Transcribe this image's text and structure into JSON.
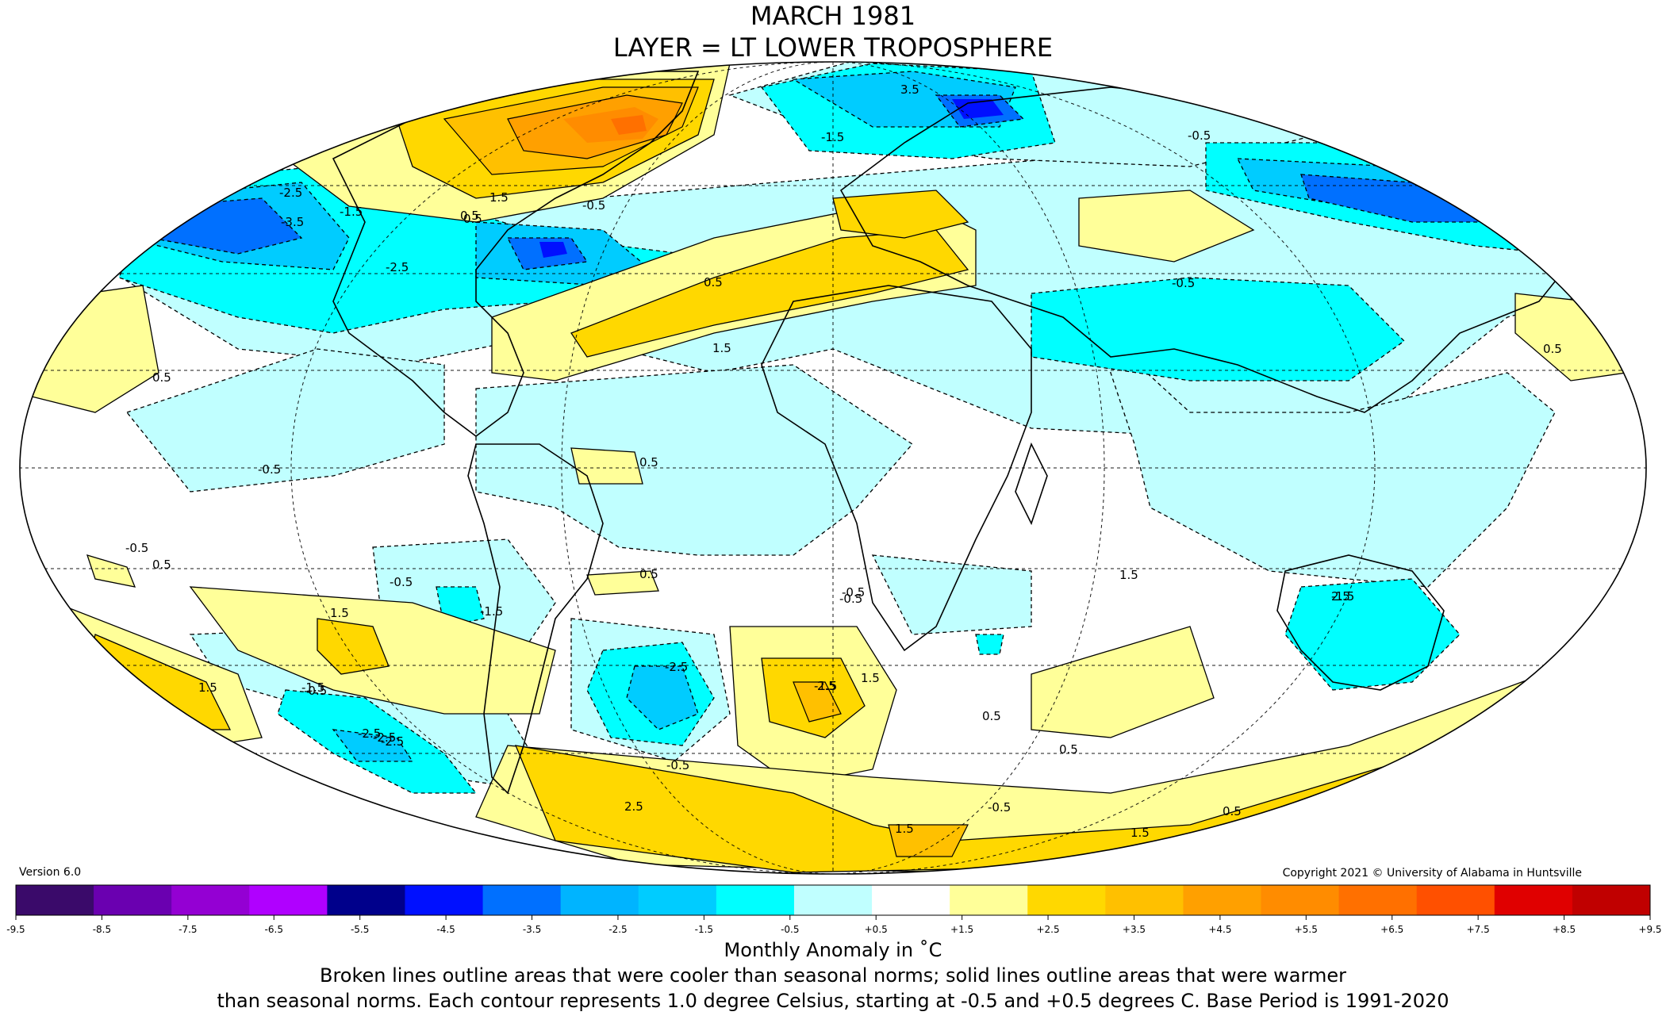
{
  "title": {
    "line1": "MARCH 1981",
    "line2": "LAYER = LT LOWER TROPOSPHERE"
  },
  "version": "Version 6.0",
  "copyright": "Copyright 2021 © University of Alabama in Huntsville",
  "colorbar": {
    "ticks": [
      "-9.5",
      "-8.5",
      "-7.5",
      "-6.5",
      "-5.5",
      "-4.5",
      "-3.5",
      "-2.5",
      "-1.5",
      "-0.5",
      "+0.5",
      "+1.5",
      "+2.5",
      "+3.5",
      "+4.5",
      "+5.5",
      "+6.5",
      "+7.5",
      "+8.5",
      "+9.5"
    ],
    "colors": [
      "#3a0a6a",
      "#6a00b0",
      "#9400d3",
      "#b000ff",
      "#00008b",
      "#0010ff",
      "#0070ff",
      "#00b4ff",
      "#00ccff",
      "#00ffff",
      "#c0ffff",
      "#ffffff",
      "#ffff99",
      "#ffd800",
      "#ffc000",
      "#ffa000",
      "#ff8c00",
      "#ff7000",
      "#ff5000",
      "#e00000",
      "#c00000"
    ],
    "unit_label": "Monthly Anomaly in ˚C"
  },
  "caption": {
    "line1": "Broken lines outline areas that were cooler than seasonal norms; solid lines outline areas that were warmer",
    "line2": "than seasonal norms. Each contour represents 1.0 degree Celsius, starting at -0.5 and +0.5 degrees C. Base Period is 1991-2020"
  },
  "map": {
    "projection": "Mollweide",
    "contour_labels": [
      "3.5",
      "-1.5",
      "-0.5",
      "0.5",
      "-2.5",
      "-3.5",
      "-1.5",
      "1.5",
      "0.5",
      "-0.5",
      "-2.5",
      "0.5",
      "1.5",
      "-0.5",
      "0.5",
      "-0.5",
      "0.5",
      "0.5",
      "1.5",
      "-0.5",
      "0.5",
      "-1.5",
      "-2.5",
      "-0.5",
      "1.5",
      "-1.5",
      "0.5",
      "-2.5",
      "2.5",
      "1.5",
      "-0.5",
      "-0.5",
      "0.5",
      "1.5",
      "-0.5",
      "2.5",
      "-0.5",
      "1.5",
      "-1.5",
      "0.5",
      "0.5",
      "-2.5",
      "1.5",
      "-1.5",
      "-2.5",
      "2.5",
      "-0.5"
    ]
  }
}
